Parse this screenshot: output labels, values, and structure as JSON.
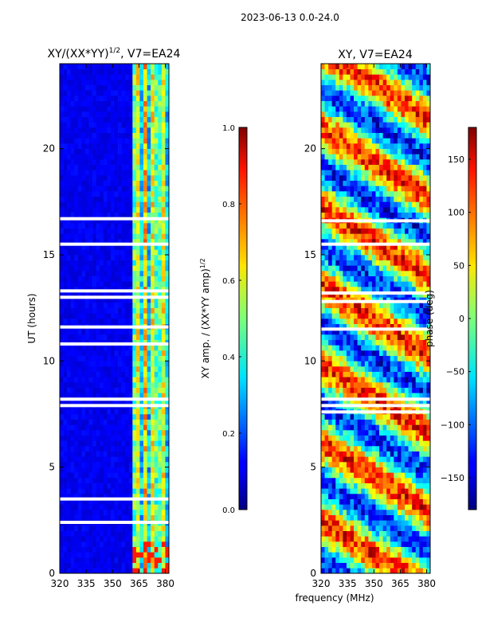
{
  "suptitle": "2023-06-13 0.0-24.0",
  "chart_data": [
    {
      "type": "heatmap",
      "title": "XY/(XX*YY)^1/2, V7=EA24",
      "title_main": "XY/(XX*YY)",
      "title_sup": "1/2",
      "title_tail": ", V7=EA24",
      "ylabel": "UT (hours)",
      "xlim": [
        320,
        382
      ],
      "ylim": [
        0,
        24
      ],
      "xticks": [
        320,
        335,
        350,
        365,
        380
      ],
      "yticks": [
        0,
        5,
        10,
        15,
        20
      ],
      "colorbar": {
        "label_main": "XY amp. / (XX*YY amp)",
        "label_sup": "1/2",
        "range": [
          0.0,
          1.0
        ],
        "ticks": [
          "0.0",
          "0.2",
          "0.4",
          "0.6",
          "0.8",
          "1.0"
        ],
        "tick_values": [
          0.0,
          0.2,
          0.4,
          0.6,
          0.8,
          1.0
        ]
      },
      "flagged_hours": [
        2.4,
        3.5,
        7.9,
        8.2,
        10.8,
        11.6,
        13.0,
        13.3,
        15.5,
        16.7
      ]
    },
    {
      "type": "heatmap",
      "title": "XY, V7=EA24",
      "xlabel": "frequency (MHz)",
      "xlim": [
        320,
        382
      ],
      "ylim": [
        0,
        24
      ],
      "xticks": [
        320,
        335,
        350,
        365,
        380
      ],
      "yticks": [
        0,
        5,
        10,
        15,
        20
      ],
      "colorbar": {
        "label": "phase (deg)",
        "range": [
          -180,
          180
        ],
        "ticks": [
          "150",
          "100",
          "50",
          "0",
          "−50",
          "−100",
          "−150"
        ],
        "tick_values": [
          150,
          100,
          50,
          0,
          -50,
          -100,
          -150
        ]
      },
      "flagged_hours": [
        7.6,
        7.9,
        8.2,
        11.5,
        12.8,
        13.2,
        15.5,
        16.6
      ]
    }
  ]
}
